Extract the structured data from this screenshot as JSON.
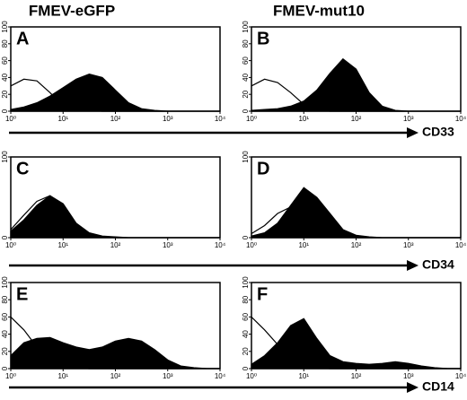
{
  "columns": [
    "FMEV-eGFP",
    "FMEV-mut10"
  ],
  "markers": [
    "CD33",
    "CD34",
    "CD14"
  ],
  "chart_data": [
    {
      "type": "histogram",
      "title": "A",
      "log_x": true,
      "x": [
        1,
        1.78,
        3.16,
        5.62,
        10,
        17.8,
        31.6,
        56.2,
        100,
        178,
        316,
        562,
        1000,
        1780,
        3160,
        5620,
        10000
      ],
      "xlim": [
        1,
        10000
      ],
      "ylim": [
        0,
        100
      ],
      "xticks": [
        {
          "value": 1,
          "label": "10⁰"
        },
        {
          "value": 10,
          "label": "10¹"
        },
        {
          "value": 100,
          "label": "10²"
        },
        {
          "value": 1000,
          "label": "10³"
        },
        {
          "value": 10000,
          "label": "10⁴"
        }
      ],
      "yticks": [
        0,
        20,
        40,
        60,
        80,
        100
      ],
      "series": [
        {
          "color": "#000000",
          "filled": false,
          "values": [
            30,
            38,
            36,
            22,
            6,
            2,
            1,
            0,
            0,
            0,
            0,
            0,
            0,
            0,
            0,
            0,
            0
          ]
        },
        {
          "color": "#000000",
          "filled": true,
          "values": [
            2,
            5,
            10,
            18,
            28,
            38,
            44,
            40,
            25,
            10,
            3,
            1,
            0,
            0,
            0,
            0,
            0
          ]
        }
      ]
    },
    {
      "type": "histogram",
      "title": "B",
      "log_x": true,
      "x": [
        1,
        1.78,
        3.16,
        5.62,
        10,
        17.8,
        31.6,
        56.2,
        100,
        178,
        316,
        562,
        1000,
        1780,
        3160,
        5620,
        10000
      ],
      "xlim": [
        1,
        10000
      ],
      "ylim": [
        0,
        100
      ],
      "xticks": [
        {
          "value": 1,
          "label": "10⁰"
        },
        {
          "value": 10,
          "label": "10¹"
        },
        {
          "value": 100,
          "label": "10²"
        },
        {
          "value": 1000,
          "label": "10³"
        },
        {
          "value": 10000,
          "label": "10⁴"
        }
      ],
      "yticks": [
        0,
        20,
        40,
        60,
        80,
        100
      ],
      "series": [
        {
          "color": "#000000",
          "filled": false,
          "values": [
            30,
            38,
            34,
            22,
            8,
            2,
            0,
            0,
            0,
            0,
            0,
            0,
            0,
            0,
            0,
            0,
            0
          ]
        },
        {
          "color": "#000000",
          "filled": true,
          "values": [
            1,
            2,
            3,
            6,
            12,
            25,
            45,
            62,
            50,
            22,
            6,
            1,
            0,
            0,
            0,
            0,
            0
          ]
        }
      ]
    },
    {
      "type": "histogram",
      "title": "C",
      "log_x": true,
      "x": [
        1,
        1.78,
        3.16,
        5.62,
        10,
        17.8,
        31.6,
        56.2,
        100,
        178,
        316,
        562,
        1000,
        1780,
        3160,
        5620,
        10000
      ],
      "xlim": [
        1,
        10000
      ],
      "ylim": [
        0,
        100
      ],
      "xticks": [
        {
          "value": 1,
          "label": "10⁰"
        },
        {
          "value": 10,
          "label": "10¹"
        },
        {
          "value": 100,
          "label": "10²"
        },
        {
          "value": 1000,
          "label": "10³"
        },
        {
          "value": 10000,
          "label": "10⁴"
        }
      ],
      "yticks": [
        0,
        100
      ],
      "series": [
        {
          "color": "#000000",
          "filled": false,
          "values": [
            10,
            28,
            45,
            52,
            40,
            15,
            4,
            1,
            0,
            0,
            0,
            0,
            0,
            0,
            0,
            0,
            0
          ]
        },
        {
          "color": "#000000",
          "filled": true,
          "values": [
            8,
            22,
            40,
            52,
            42,
            18,
            6,
            2,
            1,
            0,
            0,
            0,
            0,
            0,
            0,
            0,
            0
          ]
        }
      ]
    },
    {
      "type": "histogram",
      "title": "D",
      "log_x": true,
      "x": [
        1,
        1.78,
        3.16,
        5.62,
        10,
        17.8,
        31.6,
        56.2,
        100,
        178,
        316,
        562,
        1000,
        1780,
        3160,
        5620,
        10000
      ],
      "xlim": [
        1,
        10000
      ],
      "ylim": [
        0,
        100
      ],
      "xticks": [
        {
          "value": 1,
          "label": "10⁰"
        },
        {
          "value": 10,
          "label": "10¹"
        },
        {
          "value": 100,
          "label": "10²"
        },
        {
          "value": 1000,
          "label": "10³"
        },
        {
          "value": 10000,
          "label": "10⁴"
        }
      ],
      "yticks": [
        0,
        100
      ],
      "series": [
        {
          "color": "#000000",
          "filled": false,
          "values": [
            5,
            15,
            30,
            38,
            30,
            14,
            5,
            1,
            0,
            0,
            0,
            0,
            0,
            0,
            0,
            0,
            0
          ]
        },
        {
          "color": "#000000",
          "filled": true,
          "values": [
            2,
            6,
            18,
            40,
            62,
            50,
            30,
            10,
            3,
            1,
            0,
            0,
            0,
            0,
            0,
            0,
            0
          ]
        }
      ]
    },
    {
      "type": "histogram",
      "title": "E",
      "log_x": true,
      "x": [
        1,
        1.78,
        3.16,
        5.62,
        10,
        17.8,
        31.6,
        56.2,
        100,
        178,
        316,
        562,
        1000,
        1780,
        3160,
        5620,
        10000
      ],
      "xlim": [
        1,
        10000
      ],
      "ylim": [
        0,
        100
      ],
      "xticks": [
        {
          "value": 1,
          "label": "10⁰"
        },
        {
          "value": 10,
          "label": "10¹"
        },
        {
          "value": 100,
          "label": "10²"
        },
        {
          "value": 1000,
          "label": "10³"
        },
        {
          "value": 10000,
          "label": "10⁴"
        }
      ],
      "yticks": [
        0,
        20,
        40,
        60,
        80,
        100
      ],
      "series": [
        {
          "color": "#000000",
          "filled": false,
          "values": [
            60,
            45,
            25,
            8,
            3,
            1,
            0,
            0,
            0,
            0,
            0,
            0,
            0,
            0,
            0,
            0,
            0
          ]
        },
        {
          "color": "#000000",
          "filled": true,
          "values": [
            15,
            30,
            35,
            36,
            30,
            25,
            22,
            25,
            32,
            35,
            32,
            22,
            10,
            3,
            1,
            0,
            0
          ]
        }
      ]
    },
    {
      "type": "histogram",
      "title": "F",
      "log_x": true,
      "x": [
        1,
        1.78,
        3.16,
        5.62,
        10,
        17.8,
        31.6,
        56.2,
        100,
        178,
        316,
        562,
        1000,
        1780,
        3160,
        5620,
        10000
      ],
      "xlim": [
        1,
        10000
      ],
      "ylim": [
        0,
        100
      ],
      "xticks": [
        {
          "value": 1,
          "label": "10⁰"
        },
        {
          "value": 10,
          "label": "10¹"
        },
        {
          "value": 100,
          "label": "10²"
        },
        {
          "value": 1000,
          "label": "10³"
        },
        {
          "value": 10000,
          "label": "10⁴"
        }
      ],
      "yticks": [
        0,
        20,
        40,
        60,
        80,
        100
      ],
      "series": [
        {
          "color": "#000000",
          "filled": false,
          "values": [
            60,
            45,
            28,
            12,
            4,
            1,
            0,
            0,
            0,
            0,
            0,
            0,
            0,
            0,
            0,
            0,
            0
          ]
        },
        {
          "color": "#000000",
          "filled": true,
          "values": [
            5,
            15,
            30,
            50,
            58,
            35,
            15,
            8,
            6,
            5,
            6,
            8,
            6,
            3,
            1,
            0,
            0
          ]
        }
      ]
    }
  ]
}
